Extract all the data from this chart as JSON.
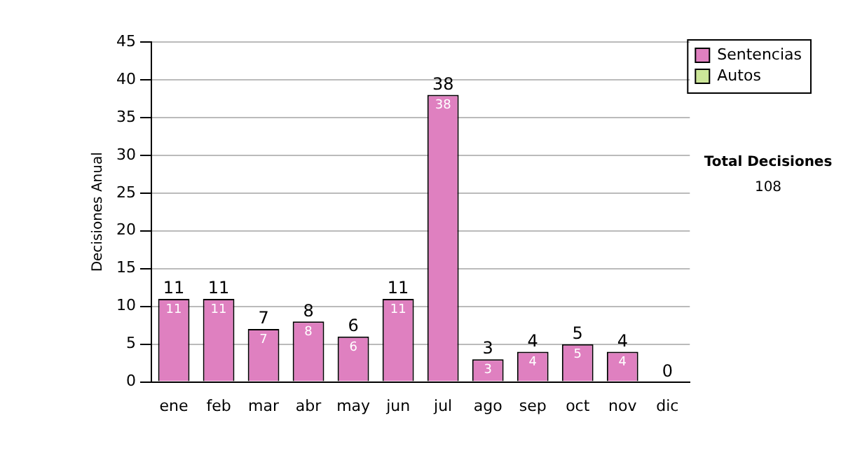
{
  "chart_data": {
    "type": "bar",
    "stacked": true,
    "ylabel": "Decisiones Anual",
    "categories": [
      "ene",
      "feb",
      "mar",
      "abr",
      "may",
      "jun",
      "jul",
      "ago",
      "sep",
      "oct",
      "nov",
      "dic"
    ],
    "series": [
      {
        "name": "Sentencias",
        "color": "#df80c0",
        "values": [
          11,
          11,
          7,
          8,
          6,
          11,
          38,
          3,
          4,
          5,
          4,
          0
        ],
        "value_labels": [
          "11",
          "11",
          "7",
          "8",
          "6",
          "11",
          "38",
          "3",
          "4",
          "5",
          "4",
          null
        ]
      },
      {
        "name": "Autos",
        "color": "#cce699",
        "values": [
          0,
          0,
          0,
          0,
          0,
          0,
          0,
          0,
          0,
          0,
          0,
          0
        ]
      }
    ],
    "totals": [
      "11",
      "11",
      "7",
      "8",
      "6",
      "11",
      "38",
      "3",
      "4",
      "5",
      "4",
      "0"
    ],
    "ylim": [
      0,
      45
    ],
    "yticks": [
      0,
      5,
      10,
      15,
      20,
      25,
      30,
      35,
      40,
      45
    ],
    "grid": "y",
    "legend": "right",
    "annotations": [
      "Total Decisiones",
      "108"
    ]
  }
}
